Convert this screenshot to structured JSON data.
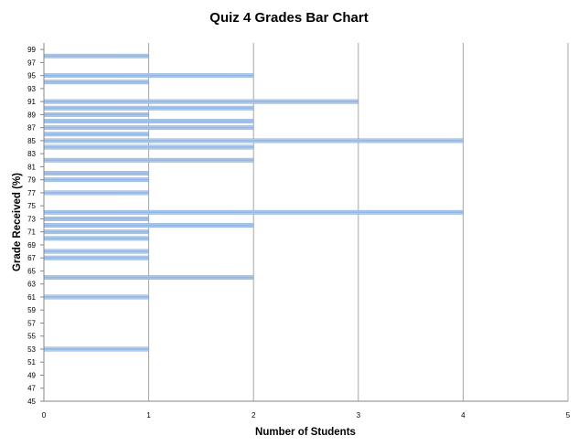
{
  "chart_data": {
    "type": "bar",
    "orientation": "horizontal",
    "title": "Quiz 4 Grades Bar Chart",
    "xlabel": "Number of Students",
    "ylabel": "Grade Received (%)",
    "xlim": [
      0,
      5
    ],
    "ylim": [
      45,
      100
    ],
    "x_ticks": [
      0,
      1,
      2,
      3,
      4,
      5
    ],
    "y_ticks": [
      45,
      47,
      49,
      51,
      53,
      55,
      57,
      59,
      61,
      63,
      65,
      67,
      69,
      71,
      73,
      75,
      77,
      79,
      81,
      83,
      85,
      87,
      89,
      91,
      93,
      95,
      97,
      99
    ],
    "grid": "vertical",
    "legend": "none",
    "bar_color": "#8db3e2",
    "categories": [
      98,
      95,
      94,
      91,
      90,
      89,
      88,
      87,
      86,
      85,
      84,
      82,
      80,
      79,
      77,
      74,
      73,
      72,
      71,
      70,
      68,
      67,
      64,
      61,
      53
    ],
    "values": [
      1,
      2,
      1,
      3,
      2,
      1,
      2,
      2,
      1,
      4,
      2,
      2,
      1,
      1,
      1,
      4,
      1,
      2,
      1,
      1,
      1,
      1,
      2,
      1,
      1
    ]
  }
}
